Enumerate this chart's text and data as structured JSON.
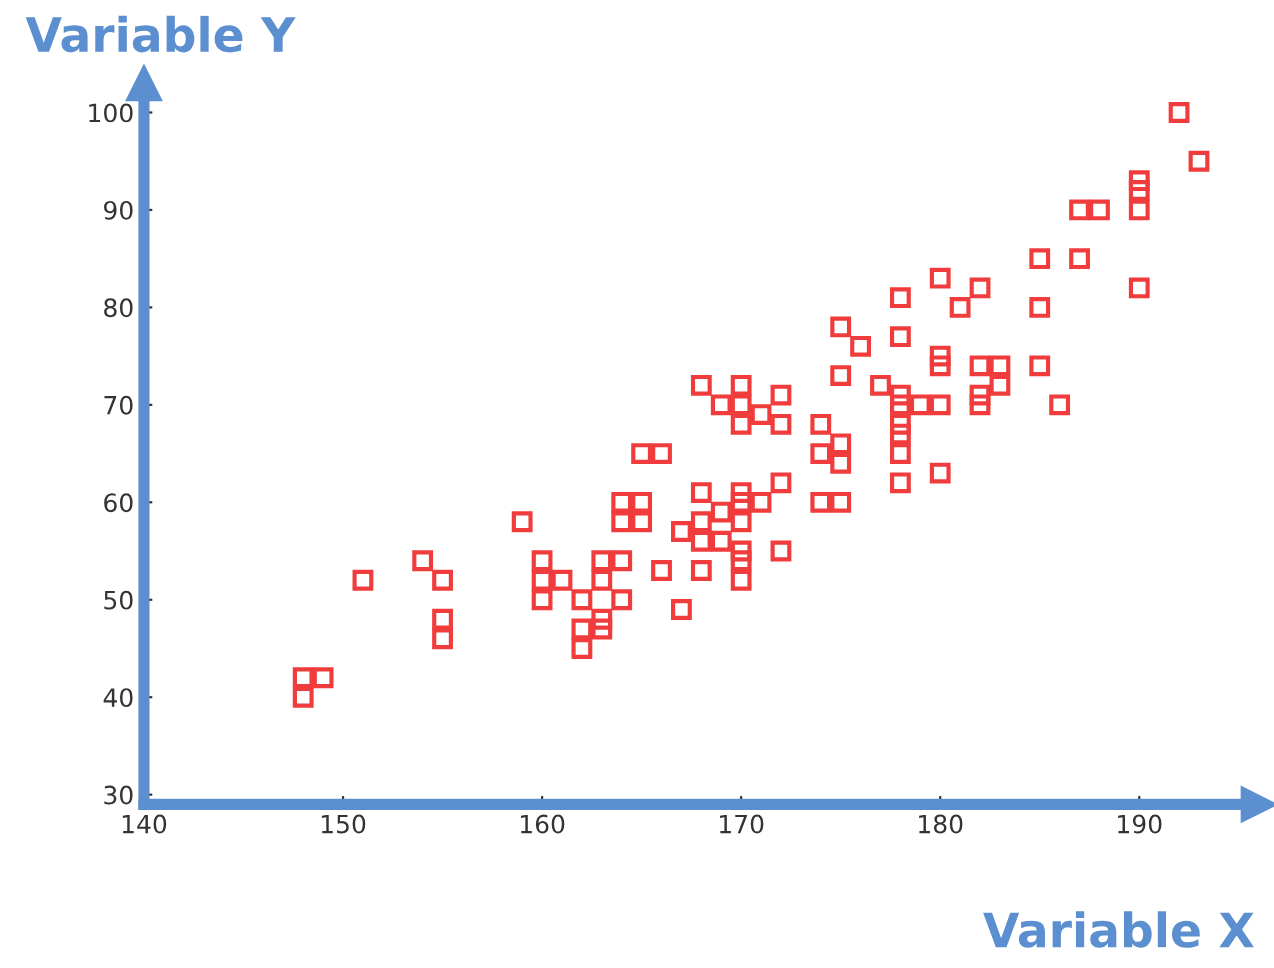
{
  "chart_data": {
    "type": "scatter",
    "xlabel": "Variable X",
    "ylabel": "Variable Y",
    "xlim": [
      140,
      196
    ],
    "ylim": [
      29,
      103
    ],
    "xticks": [
      140,
      150,
      160,
      170,
      180,
      190
    ],
    "yticks": [
      30,
      40,
      50,
      60,
      70,
      80,
      90,
      100
    ],
    "grid": false,
    "legend": false,
    "marker": "square",
    "series": [
      {
        "color": "#f03c3c",
        "x": [
          148,
          148,
          149,
          151,
          154,
          155,
          155,
          155,
          159,
          160,
          160,
          160,
          161,
          162,
          162,
          162,
          163,
          163,
          163,
          163,
          164,
          164,
          164,
          164,
          165,
          165,
          166,
          165,
          166,
          167,
          167,
          168,
          168,
          168,
          168,
          168,
          169,
          169,
          169,
          170,
          170,
          170,
          170,
          170,
          170,
          170,
          170,
          170,
          171,
          171,
          172,
          172,
          172,
          172,
          174,
          174,
          174,
          175,
          175,
          175,
          175,
          175,
          176,
          177,
          178,
          178,
          178,
          178,
          178,
          178,
          178,
          178,
          179,
          180,
          180,
          180,
          180,
          180,
          181,
          182,
          182,
          182,
          182,
          183,
          183,
          185,
          185,
          185,
          186,
          187,
          187,
          188,
          190,
          190,
          190,
          190,
          192,
          193
        ],
        "values": [
          40,
          42,
          42,
          52,
          54,
          52,
          48,
          46,
          58,
          54,
          52,
          50,
          52,
          50,
          47,
          45,
          54,
          52,
          48,
          47,
          58,
          60,
          54,
          50,
          60,
          65,
          65,
          58,
          53,
          57,
          49,
          72,
          61,
          58,
          56,
          53,
          70,
          59,
          56,
          72,
          70,
          68,
          61,
          60,
          58,
          55,
          54,
          52,
          69,
          60,
          71,
          68,
          62,
          55,
          68,
          65,
          60,
          78,
          73,
          66,
          64,
          60,
          76,
          72,
          81,
          77,
          71,
          70,
          68,
          67,
          65,
          62,
          70,
          83,
          75,
          74,
          70,
          63,
          80,
          82,
          74,
          71,
          70,
          74,
          72,
          85,
          80,
          74,
          70,
          85,
          90,
          90,
          93,
          92,
          90,
          82,
          100,
          95
        ]
      }
    ]
  }
}
